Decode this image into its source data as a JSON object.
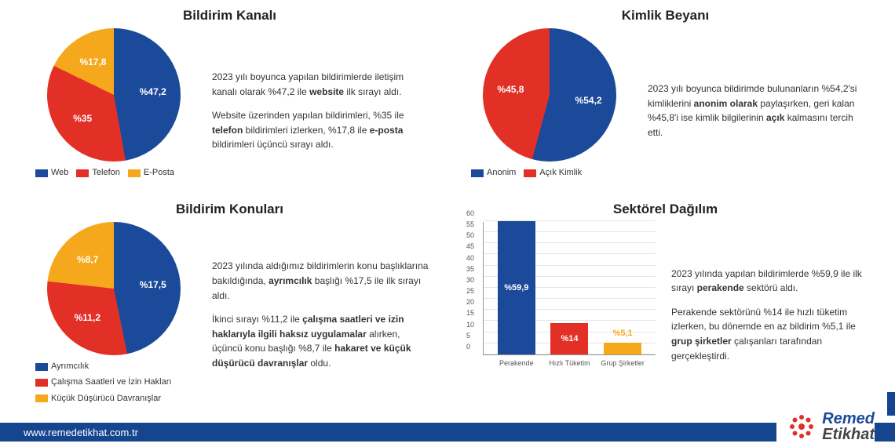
{
  "colors": {
    "blue": "#1b4a9a",
    "red": "#e33027",
    "yellow": "#f6a81c",
    "grid": "#e5e5e5",
    "axis": "#999999",
    "footer_bg": "#15458f",
    "text": "#333333"
  },
  "panels": {
    "channel": {
      "title": "Bildirim Kanalı",
      "type": "pie",
      "slices": [
        {
          "key": "web",
          "label": "%47,2",
          "value": 47.2,
          "color": "#1b4a9a",
          "legend": "Web"
        },
        {
          "key": "telefon",
          "label": "%35",
          "value": 35.0,
          "color": "#e33027",
          "legend": "Telefon"
        },
        {
          "key": "eposta",
          "label": "%17,8",
          "value": 17.8,
          "color": "#f6a81c",
          "legend": "E-Posta"
        }
      ],
      "desc": [
        "2023 yılı boyunca yapılan bildirimlerde iletişim kanalı olarak %47,2 ile <b>website</b> ilk sırayı aldı.",
        "Website üzerinden yapılan bildirimleri, %35 ile <b>telefon</b> bildirimleri izlerken, %17,8 ile <b>e-posta</b> bildirimleri üçüncü sırayı aldı."
      ]
    },
    "identity": {
      "title": "Kimlik Beyanı",
      "type": "pie",
      "slices": [
        {
          "key": "anonim",
          "label": "%54,2",
          "value": 54.2,
          "color": "#1b4a9a",
          "legend": "Anonim"
        },
        {
          "key": "acik",
          "label": "%45,8",
          "value": 45.8,
          "color": "#e33027",
          "legend": "Açık Kimlik"
        }
      ],
      "desc": [
        "2023 yılı boyunca bildirimde bulunanların %54,2'si kimliklerini <b>anonim olarak</b> paylaşırken, geri kalan %45,8'i ise kimlik bilgilerinin <b>açık</b> kalmasını tercih etti."
      ]
    },
    "topics": {
      "title": "Bildirim Konuları",
      "type": "pie",
      "slices": [
        {
          "key": "ayrimcilik",
          "label": "%17,5",
          "value": 17.5,
          "color": "#1b4a9a",
          "legend": "Ayrımcılık"
        },
        {
          "key": "calisma",
          "label": "%11,2",
          "value": 11.2,
          "color": "#e33027",
          "legend": "Çalışma Saatleri ve İzin Hakları"
        },
        {
          "key": "kucuk",
          "label": "%8,7",
          "value": 8.7,
          "color": "#f6a81c",
          "legend": "Küçük Düşürücü Davranışlar"
        }
      ],
      "desc": [
        "2023 yılında aldığımız bildirimlerin konu başlıklarına bakıldığında, <b>ayrımcılık</b> başlığı %17,5 ile ilk sırayı aldı.",
        "İkinci sırayı %11,2 ile <b>çalışma saatleri ve izin haklarıyla ilgili haksız uygulamalar</b> alırken, üçüncü konu başlığı %8,7 ile <b>hakaret ve küçük düşürücü davranışlar</b> oldu."
      ]
    },
    "sector": {
      "title": "Sektörel Dağılım",
      "type": "bar",
      "ymax": 60,
      "ytick_step": 5,
      "bars": [
        {
          "key": "perakende",
          "label": "%59,9",
          "value": 59.9,
          "color": "#1b4a9a",
          "x": "Perakende"
        },
        {
          "key": "hizli",
          "label": "%14",
          "value": 14.0,
          "color": "#e33027",
          "x": "Hızlı Tüketim"
        },
        {
          "key": "grup",
          "label": "%5,1",
          "value": 5.1,
          "color": "#f6a81c",
          "x": "Grup Şirketler"
        }
      ],
      "desc": [
        "2023 yılında yapılan bildirimlerde %59,9 ile ilk sırayı <b>perakende</b> sektörü aldı.",
        "Perakende sektörünü %14 ile hızlı tüketim izlerken, bu dönemde en az bildirim %5,1 ile <b>grup şirketler</b> çalışanları tarafından gerçekleştirdi."
      ]
    }
  },
  "footer": {
    "url": "www.remedetikhat.com.tr",
    "logo_line1": "Remed",
    "logo_line2": "Etikhat"
  }
}
